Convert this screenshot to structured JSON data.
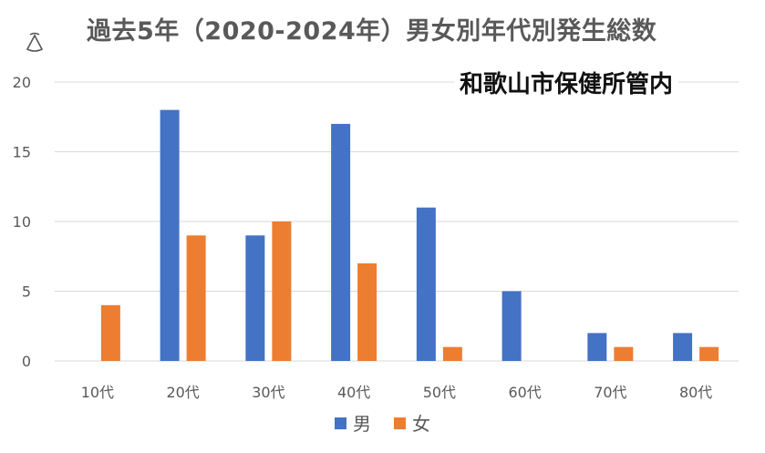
{
  "title": "過去5年（2020-2024年）男女別年代別発生総数",
  "subtitle": "和歌山市保健所管内",
  "colors": {
    "male": "#4472C4",
    "female": "#ED7D31",
    "grid": "#D9D9D9",
    "axis_text": "#595959"
  },
  "chart_data": {
    "type": "bar",
    "title": "過去5年（2020-2024年）男女別年代別発生総数",
    "subtitle": "和歌山市保健所管内",
    "categories": [
      "10代",
      "20代",
      "30代",
      "40代",
      "50代",
      "60代",
      "70代",
      "80代"
    ],
    "series": [
      {
        "name": "男",
        "color": "#4472C4",
        "values": [
          0,
          18,
          9,
          17,
          11,
          5,
          2,
          2
        ]
      },
      {
        "name": "女",
        "color": "#ED7D31",
        "values": [
          4,
          9,
          10,
          7,
          1,
          0,
          1,
          1
        ]
      }
    ],
    "yticks": [
      "0",
      "5",
      "10",
      "15",
      "20"
    ],
    "ylim": [
      0,
      20
    ],
    "xlabel": "",
    "ylabel": "",
    "grid": true,
    "legend": "bottom"
  }
}
